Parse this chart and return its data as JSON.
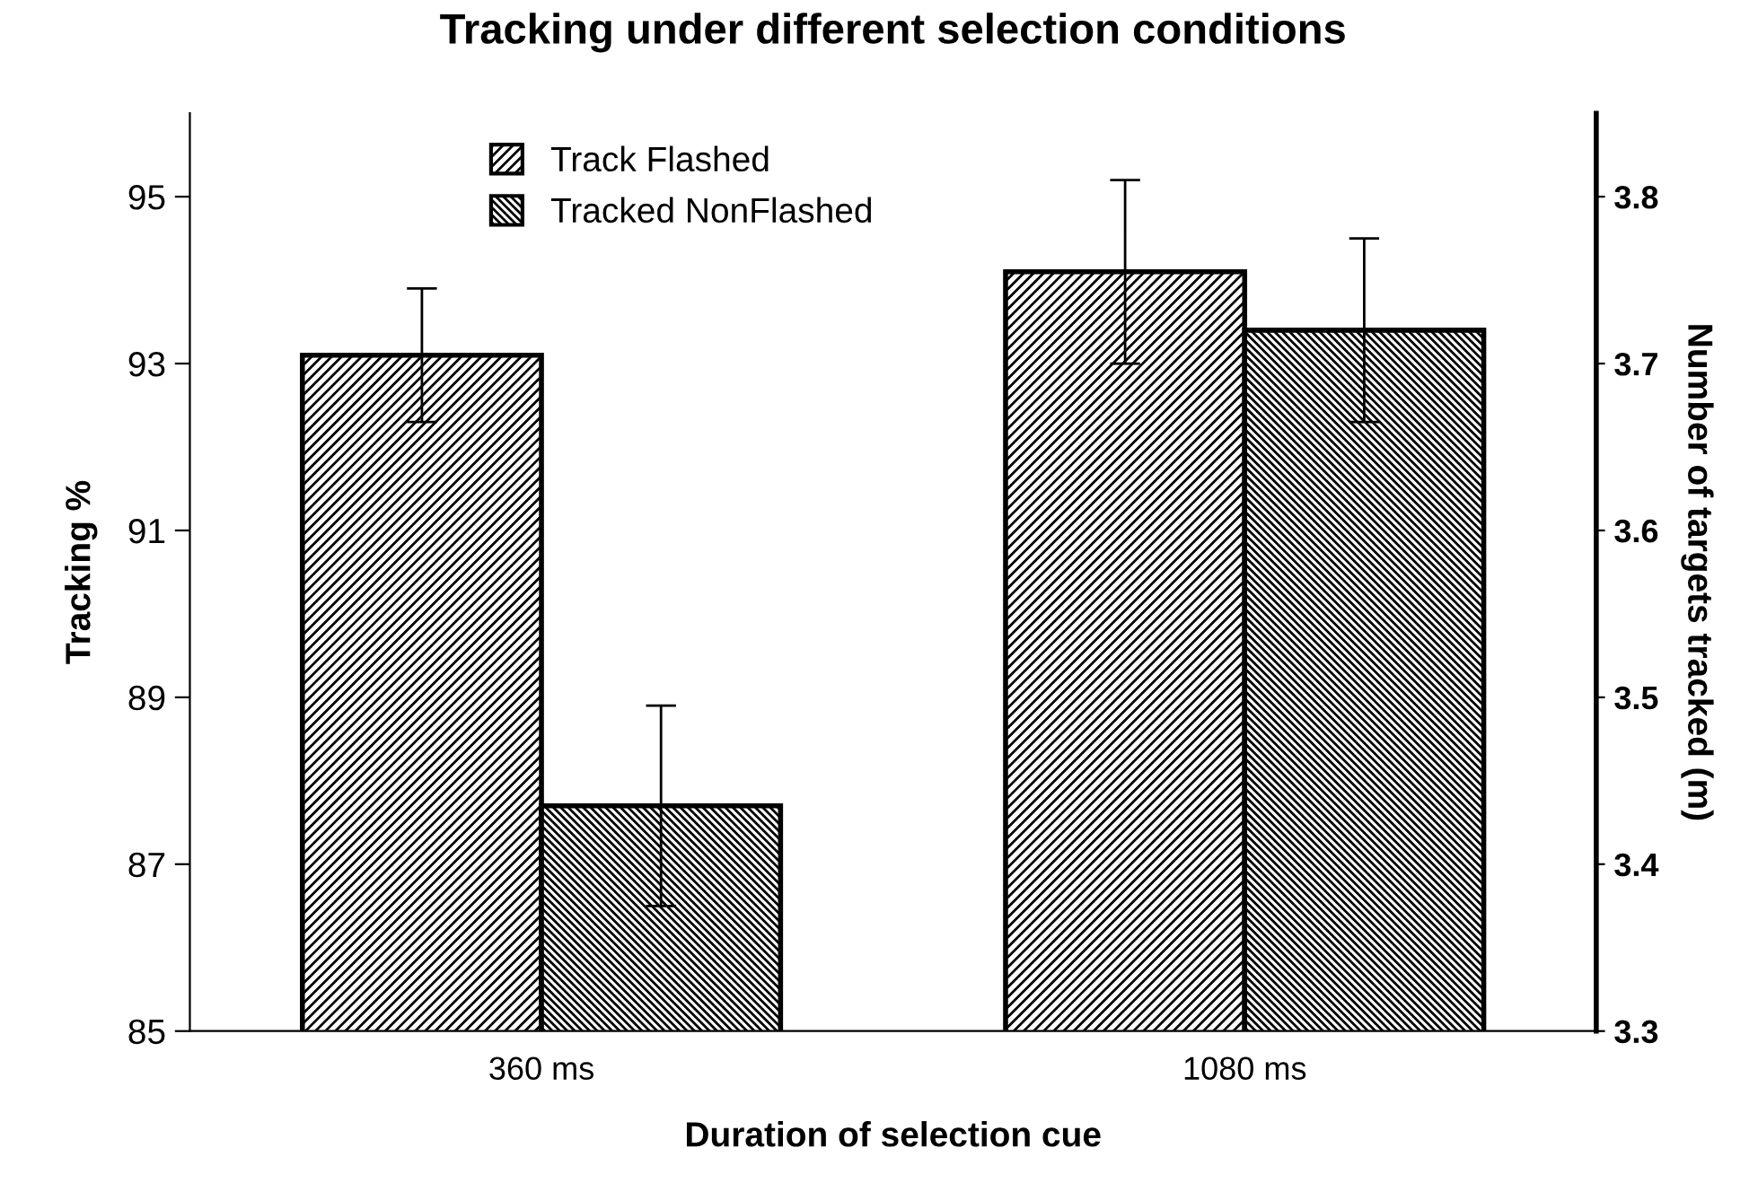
{
  "chart_data": {
    "type": "bar",
    "title": "Tracking under different selection conditions",
    "xlabel": "Duration of selection cue",
    "ylabel": "Tracking %",
    "y2label": "Number of targets tracked (m)",
    "categories": [
      "360 ms",
      "1080 ms"
    ],
    "series": [
      {
        "name": "Track Flashed",
        "color": "#000000",
        "values": [
          93.1,
          94.1
        ],
        "errors": [
          0.8,
          1.1
        ]
      },
      {
        "name": "Tracked NonFlashed",
        "color": "#000000",
        "values": [
          87.7,
          93.4
        ],
        "errors": [
          1.2,
          1.1
        ]
      }
    ],
    "ylim": [
      85,
      96
    ],
    "yticks": [
      85,
      87,
      89,
      91,
      93,
      95
    ],
    "y2lim": [
      3.3,
      3.85
    ],
    "y2ticks": [
      3.3,
      3.4,
      3.5,
      3.6,
      3.7,
      3.8
    ],
    "legend": "top",
    "grid": false
  }
}
